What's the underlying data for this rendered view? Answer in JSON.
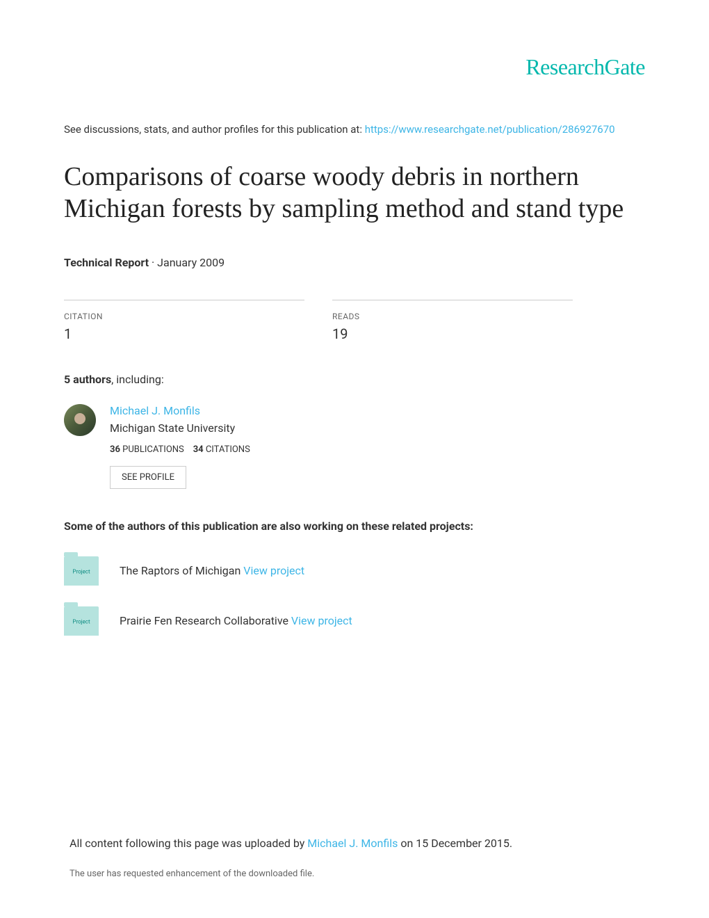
{
  "logo": "ResearchGate",
  "intro": {
    "prefix": "See discussions, stats, and author profiles for this publication at: ",
    "url": "https://www.researchgate.net/publication/286927670"
  },
  "title": "Comparisons of coarse woody debris in northern Michigan forests by sampling method and stand type",
  "meta": {
    "type": "Technical Report",
    "date": "January 2009"
  },
  "stats": {
    "citation": {
      "label": "CITATION",
      "value": "1"
    },
    "reads": {
      "label": "READS",
      "value": "19"
    }
  },
  "authors": {
    "count": "5 authors",
    "suffix": ", including:",
    "listed": {
      "name": "Michael J. Monfils",
      "affiliation": "Michigan State University",
      "publications_count": "36",
      "publications_label": "PUBLICATIONS",
      "citations_count": "34",
      "citations_label": "CITATIONS",
      "profile_button": "SEE PROFILE"
    }
  },
  "projects": {
    "heading": "Some of the authors of this publication are also working on these related projects:",
    "items": [
      {
        "title": "The Raptors of Michigan ",
        "link": "View project"
      },
      {
        "title": "Prairie Fen Research Collaborative ",
        "link": "View project"
      }
    ]
  },
  "footer": {
    "prefix": "All content following this page was uploaded by ",
    "uploader": "Michael J. Monfils",
    "suffix": " on 15 December 2015."
  },
  "footer_note": "The user has requested enhancement of the downloaded file.",
  "colors": {
    "brand": "#04b8ad",
    "link": "#3db5e6",
    "text": "#333333",
    "muted": "#666666",
    "border": "#cccccc"
  }
}
